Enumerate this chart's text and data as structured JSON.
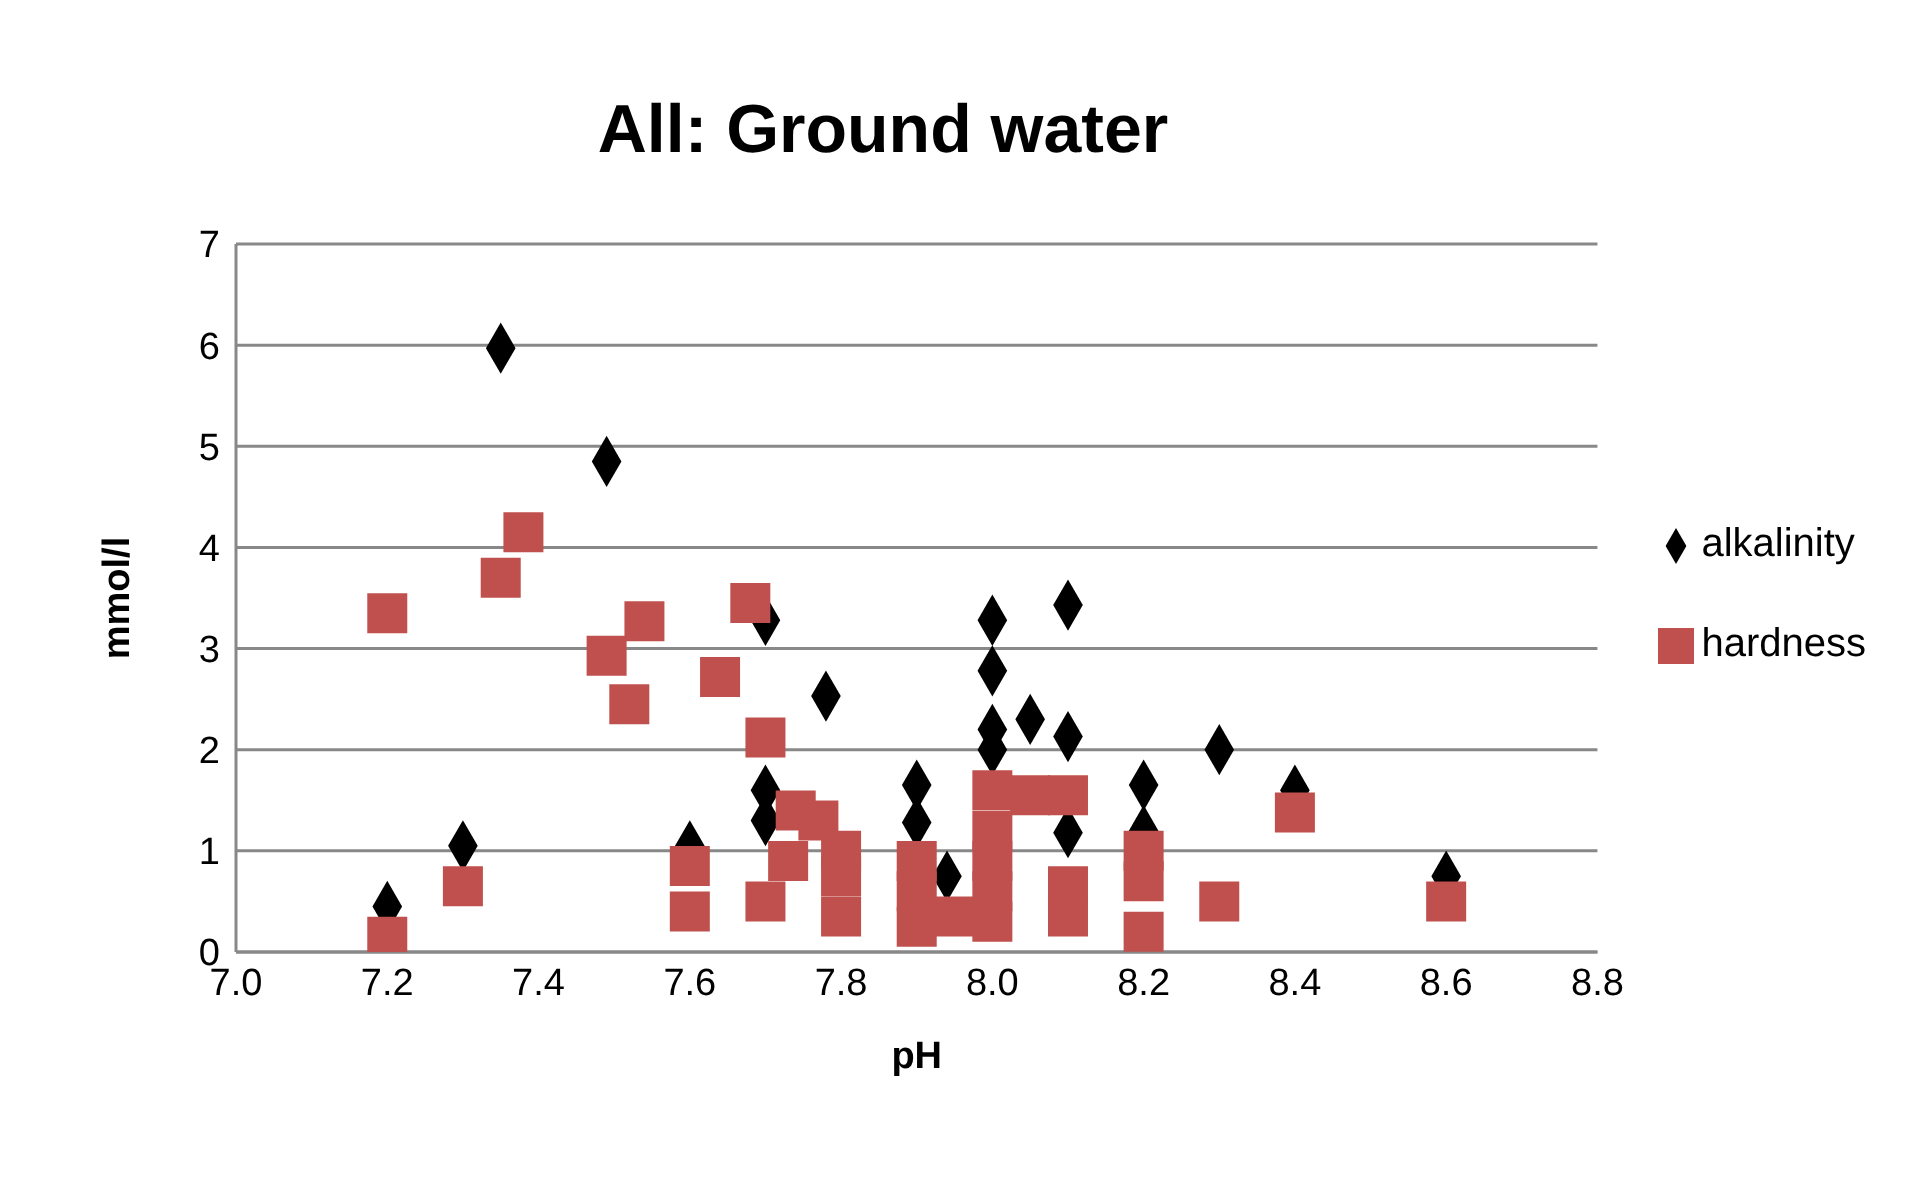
{
  "chart_data": {
    "type": "scatter",
    "title": "All: Ground water",
    "xlabel": "pH",
    "ylabel": "mmol/l",
    "xlim": [
      7.0,
      8.8
    ],
    "xticks": [
      {
        "value": 7.0,
        "label": "7.0"
      },
      {
        "value": 7.2,
        "label": "7.2"
      },
      {
        "value": 7.4,
        "label": "7.4"
      },
      {
        "value": 7.6,
        "label": "7.6"
      },
      {
        "value": 7.8,
        "label": "7.8"
      },
      {
        "value": 8.0,
        "label": "8.0"
      },
      {
        "value": 8.2,
        "label": "8.2"
      },
      {
        "value": 8.4,
        "label": "8.4"
      },
      {
        "value": 8.6,
        "label": "8.6"
      },
      {
        "value": 8.8,
        "label": "8.8"
      }
    ],
    "ylim": [
      0,
      7
    ],
    "yticks": [
      0,
      1,
      2,
      3,
      4,
      5,
      6,
      7
    ],
    "grid": "y",
    "legend": "right",
    "series": [
      {
        "name": "alkalinity",
        "color": "#000000",
        "marker": "diamond",
        "x": [
          7.2,
          7.3,
          7.35,
          7.49,
          7.7,
          7.78,
          7.6,
          7.7,
          7.7,
          7.9,
          7.9,
          7.94,
          8.0,
          8.0,
          8.0,
          8.0,
          8.05,
          8.1,
          8.1,
          8.1,
          8.2,
          8.2,
          8.3,
          8.4,
          8.6
        ],
        "values": [
          0.45,
          1.05,
          5.97,
          4.85,
          3.28,
          2.53,
          1.05,
          1.6,
          1.3,
          1.65,
          1.28,
          0.75,
          3.28,
          2.78,
          2.2,
          2.0,
          2.3,
          3.43,
          2.13,
          1.18,
          1.65,
          1.2,
          2.0,
          1.6,
          0.75
        ]
      },
      {
        "name": "hardness",
        "color": "#c0504d",
        "marker": "square",
        "x": [
          7.2,
          7.2,
          7.3,
          7.35,
          7.38,
          7.49,
          7.52,
          7.54,
          7.6,
          7.6,
          7.64,
          7.68,
          7.7,
          7.7,
          7.74,
          7.77,
          7.8,
          7.8,
          7.8,
          7.73,
          7.9,
          7.9,
          7.9,
          7.95,
          8.0,
          8.0,
          8.0,
          8.0,
          8.0,
          8.05,
          8.1,
          8.1,
          8.1,
          8.2,
          8.2,
          8.2,
          8.3,
          8.4,
          8.6
        ],
        "values": [
          3.35,
          0.15,
          0.65,
          3.7,
          4.15,
          2.93,
          2.45,
          3.27,
          0.85,
          0.4,
          2.72,
          3.45,
          2.12,
          0.5,
          1.4,
          1.3,
          1.0,
          0.75,
          0.35,
          0.9,
          0.9,
          0.6,
          0.25,
          0.35,
          1.6,
          1.2,
          0.9,
          0.6,
          0.3,
          1.55,
          1.55,
          0.65,
          0.35,
          1.0,
          0.7,
          0.2,
          0.5,
          1.38,
          0.5
        ]
      }
    ]
  }
}
